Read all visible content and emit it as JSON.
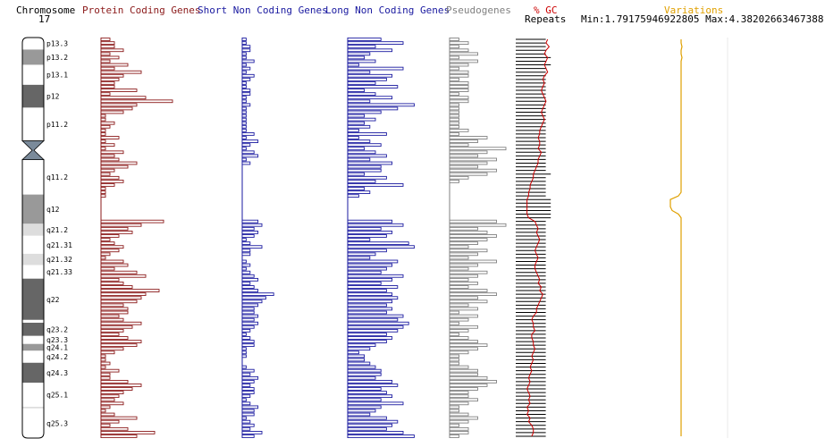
{
  "header": {
    "chromosome_label": "Chromosome",
    "chromosome_number": "17",
    "protein_coding": "Protein Coding Genes",
    "short_noncoding": "Short Non Coding Genes",
    "long_noncoding": "Long Non Coding Genes",
    "pseudogenes": "Pseudogenes",
    "gc": "% GC",
    "repeats": "Repeats",
    "minmax": "Min:1.79175946922805 Max:4.38202663467388",
    "variations": "Variations"
  },
  "colors": {
    "protein_coding": "#8b1a1a",
    "short_noncoding": "#1a1aa0",
    "long_noncoding": "#1a1aa0",
    "pseudogenes": "#808080",
    "gc": "#cc0000",
    "repeats": "#000000",
    "variations": "#e0a000",
    "band_dark": "#666666",
    "band_mid": "#999999",
    "band_light": "#dddddd",
    "centromere": "#7a8a9a"
  },
  "chart_data": {
    "type": "bar",
    "orientation": "horizontal",
    "bands": [
      {
        "name": "p13.3",
        "start": 0.0,
        "end": 0.03,
        "stain": "white"
      },
      {
        "name": "p13.2",
        "start": 0.03,
        "end": 0.068,
        "stain": "mid"
      },
      {
        "name": "p13.1",
        "start": 0.068,
        "end": 0.118,
        "stain": "white"
      },
      {
        "name": "p12",
        "start": 0.118,
        "end": 0.175,
        "stain": "dark"
      },
      {
        "name": "p11.2",
        "start": 0.175,
        "end": 0.258,
        "stain": "white"
      },
      {
        "name": "p11.1",
        "start": 0.258,
        "end": 0.281,
        "stain": "cen"
      },
      {
        "name": "q11.1",
        "start": 0.281,
        "end": 0.305,
        "stain": "cen"
      },
      {
        "name": "q11.2",
        "start": 0.305,
        "end": 0.392,
        "stain": "white"
      },
      {
        "name": "q12",
        "start": 0.392,
        "end": 0.465,
        "stain": "mid"
      },
      {
        "name": "q21.2",
        "start": 0.465,
        "end": 0.495,
        "stain": "light"
      },
      {
        "name": "q21.31",
        "start": 0.495,
        "end": 0.54,
        "stain": "white"
      },
      {
        "name": "q21.32",
        "start": 0.54,
        "end": 0.568,
        "stain": "light"
      },
      {
        "name": "q21.33",
        "start": 0.568,
        "end": 0.602,
        "stain": "white"
      },
      {
        "name": "q22",
        "start": 0.602,
        "end": 0.705,
        "stain": "dark"
      },
      {
        "name": "q23.1",
        "start": 0.705,
        "end": 0.712,
        "stain": "white"
      },
      {
        "name": "q23.2",
        "start": 0.712,
        "end": 0.745,
        "stain": "dark"
      },
      {
        "name": "q23.3",
        "start": 0.745,
        "end": 0.765,
        "stain": "white"
      },
      {
        "name": "q24.1",
        "start": 0.765,
        "end": 0.782,
        "stain": "mid"
      },
      {
        "name": "q24.2",
        "start": 0.782,
        "end": 0.812,
        "stain": "white"
      },
      {
        "name": "q24.3",
        "start": 0.812,
        "end": 0.862,
        "stain": "dark"
      },
      {
        "name": "q25.1",
        "start": 0.862,
        "end": 0.922,
        "stain": "white"
      },
      {
        "name": "q25.2",
        "start": 0.922,
        "end": 0.926,
        "stain": "light"
      },
      {
        "name": "q25.3",
        "start": 0.926,
        "end": 1.0,
        "stain": "white"
      }
    ],
    "band_labels_shown": [
      "p13.3",
      "p13.2",
      "p13.1",
      "p12",
      "p11.2",
      "q11.2",
      "q12",
      "q21.2",
      "q21.31",
      "q21.32",
      "q21.33",
      "q22",
      "q23.2",
      "q23.3",
      "q24.1",
      "q24.2",
      "q24.3",
      "q25.1",
      "q25.3"
    ],
    "bin_count": 110,
    "protein_coding": [
      2,
      3,
      3,
      5,
      2,
      4,
      2,
      6,
      3,
      9,
      5,
      4,
      3,
      3,
      8,
      2,
      10,
      16,
      8,
      7,
      5,
      1,
      1,
      3,
      2,
      1,
      1,
      4,
      1,
      3,
      1,
      5,
      3,
      4,
      8,
      6,
      3,
      2,
      4,
      5,
      3,
      1,
      1,
      1,
      0,
      0,
      0,
      0,
      0,
      0,
      14,
      9,
      6,
      7,
      4,
      2,
      3,
      5,
      4,
      2,
      1,
      5,
      6,
      3,
      8,
      10,
      4,
      5,
      7,
      13,
      10,
      9,
      8,
      5,
      6,
      6,
      4,
      5,
      9,
      7,
      5,
      4,
      6,
      9,
      8,
      5,
      3,
      1,
      1,
      2,
      1,
      4,
      2,
      2,
      6,
      9,
      7,
      5,
      4,
      3,
      5,
      2,
      1,
      3,
      8,
      4,
      2,
      6,
      12,
      8
    ],
    "short_noncoding": [
      1,
      1,
      2,
      2,
      1,
      1,
      3,
      1,
      2,
      1,
      3,
      2,
      1,
      1,
      2,
      2,
      1,
      1,
      2,
      1,
      1,
      1,
      1,
      1,
      1,
      1,
      3,
      1,
      4,
      2,
      1,
      3,
      4,
      1,
      2,
      0,
      0,
      0,
      0,
      0,
      0,
      0,
      0,
      0,
      0,
      0,
      0,
      0,
      0,
      0,
      4,
      5,
      3,
      4,
      3,
      1,
      2,
      5,
      2,
      2,
      0,
      1,
      2,
      1,
      2,
      3,
      4,
      2,
      3,
      4,
      8,
      6,
      5,
      4,
      3,
      3,
      4,
      3,
      4,
      3,
      2,
      1,
      2,
      3,
      3,
      1,
      1,
      1,
      0,
      0,
      1,
      3,
      2,
      4,
      3,
      2,
      3,
      3,
      2,
      1,
      2,
      4,
      3,
      3,
      1,
      2,
      3,
      2,
      5,
      3
    ],
    "long_noncoding": [
      6,
      10,
      5,
      8,
      4,
      3,
      5,
      2,
      10,
      4,
      8,
      7,
      5,
      9,
      3,
      5,
      8,
      4,
      12,
      9,
      6,
      3,
      5,
      3,
      4,
      2,
      7,
      2,
      4,
      6,
      3,
      5,
      7,
      4,
      8,
      6,
      6,
      3,
      7,
      5,
      10,
      3,
      4,
      2,
      0,
      0,
      0,
      0,
      0,
      0,
      8,
      10,
      6,
      8,
      7,
      4,
      11,
      12,
      7,
      5,
      4,
      9,
      8,
      7,
      6,
      10,
      8,
      6,
      9,
      7,
      8,
      9,
      8,
      7,
      8,
      7,
      10,
      9,
      11,
      10,
      9,
      7,
      8,
      7,
      5,
      4,
      2,
      3,
      3,
      4,
      5,
      6,
      6,
      5,
      8,
      9,
      6,
      7,
      8,
      6,
      10,
      6,
      5,
      4,
      7,
      9,
      8,
      7,
      10,
      12
    ],
    "pseudogenes": [
      1,
      2,
      1,
      2,
      3,
      1,
      3,
      2,
      1,
      2,
      2,
      1,
      2,
      2,
      2,
      1,
      2,
      2,
      1,
      1,
      1,
      1,
      1,
      1,
      1,
      2,
      1,
      4,
      3,
      2,
      6,
      4,
      3,
      5,
      4,
      3,
      5,
      4,
      2,
      1,
      0,
      0,
      0,
      0,
      0,
      0,
      0,
      0,
      0,
      0,
      5,
      6,
      3,
      4,
      5,
      4,
      3,
      2,
      4,
      3,
      2,
      5,
      3,
      2,
      4,
      3,
      2,
      3,
      2,
      4,
      5,
      3,
      4,
      2,
      3,
      1,
      3,
      2,
      1,
      3,
      2,
      1,
      2,
      3,
      4,
      3,
      2,
      1,
      1,
      1,
      2,
      3,
      3,
      4,
      5,
      4,
      3,
      2,
      2,
      3,
      2,
      1,
      1,
      2,
      3,
      2,
      1,
      2,
      2,
      1
    ],
    "repeats": [
      6,
      6,
      6,
      6,
      6,
      7,
      6,
      7,
      6,
      6,
      6,
      6,
      6,
      6,
      6,
      6,
      6,
      6,
      6,
      6,
      6,
      6,
      6,
      6,
      6,
      6,
      6,
      6,
      6,
      6,
      6,
      6,
      6,
      6,
      6,
      6,
      6,
      7,
      6,
      6,
      6,
      6,
      6,
      6,
      7,
      7,
      7,
      7,
      7,
      7,
      6,
      6,
      6,
      6,
      6,
      6,
      6,
      6,
      6,
      6,
      6,
      6,
      6,
      6,
      6,
      6,
      6,
      6,
      6,
      6,
      6,
      6,
      6,
      6,
      6,
      6,
      6,
      6,
      6,
      6,
      6,
      6,
      6,
      6,
      6,
      6,
      6,
      6,
      6,
      6,
      6,
      6,
      6,
      6,
      6,
      6,
      6,
      6,
      6,
      6,
      6,
      6,
      6,
      6,
      6,
      6,
      6,
      6,
      6,
      6
    ],
    "gc": [
      3.8,
      3.7,
      3.9,
      3.7,
      3.6,
      3.8,
      3.7,
      3.6,
      3.7,
      3.8,
      3.6,
      3.5,
      3.6,
      3.5,
      3.4,
      3.5,
      3.6,
      3.7,
      3.6,
      3.5,
      3.4,
      3.5,
      3.6,
      3.5,
      3.4,
      3.3,
      3.3,
      3.2,
      3.3,
      3.3,
      3.2,
      3.4,
      3.3,
      3.2,
      3.2,
      3.1,
      3.0,
      2.9,
      2.9,
      2.8,
      2.7,
      2.7,
      2.6,
      2.6,
      2.5,
      2.5,
      2.5,
      2.5,
      2.5,
      2.6,
      3.0,
      3.1,
      3.2,
      3.1,
      3.2,
      3.3,
      3.2,
      3.1,
      3.0,
      3.1,
      3.2,
      3.1,
      3.0,
      3.0,
      3.1,
      3.2,
      3.3,
      3.2,
      3.4,
      3.3,
      3.5,
      3.4,
      3.3,
      3.2,
      3.1,
      3.1,
      2.9,
      2.8,
      2.9,
      2.9,
      3.0,
      2.8,
      2.8,
      2.9,
      2.9,
      3.0,
      2.9,
      2.8,
      2.9,
      2.8,
      2.7,
      2.8,
      2.7,
      2.6,
      2.7,
      2.6,
      2.5,
      2.6,
      2.7,
      2.6,
      2.7,
      2.5,
      2.6,
      2.5,
      2.7,
      2.6,
      2.8,
      2.9,
      2.9,
      2.8
    ],
    "variations": [
      2.2,
      2.2,
      2.3,
      2.2,
      2.2,
      2.3,
      2.2,
      2.2,
      2.2,
      2.2,
      2.2,
      2.2,
      2.2,
      2.2,
      2.2,
      2.2,
      2.2,
      2.2,
      2.2,
      2.2,
      2.2,
      2.2,
      2.2,
      2.2,
      2.2,
      2.2,
      2.2,
      2.2,
      2.2,
      2.2,
      2.2,
      2.2,
      2.2,
      2.2,
      2.2,
      2.2,
      2.2,
      2.2,
      2.2,
      2.2,
      2.2,
      2.2,
      2.2,
      1.9,
      1.0,
      1.0,
      1.0,
      1.2,
      1.9,
      2.2,
      2.2,
      2.2,
      2.2,
      2.2,
      2.2,
      2.2,
      2.2,
      2.2,
      2.2,
      2.2,
      2.2,
      2.2,
      2.2,
      2.2,
      2.2,
      2.2,
      2.2,
      2.2,
      2.2,
      2.2,
      2.2,
      2.2,
      2.2,
      2.2,
      2.2,
      2.2,
      2.2,
      2.2,
      2.2,
      2.2,
      2.2,
      2.2,
      2.2,
      2.2,
      2.2,
      2.2,
      2.2,
      2.2,
      2.2,
      2.2,
      2.2,
      2.2,
      2.2,
      2.2,
      2.2,
      2.2,
      2.2,
      2.2,
      2.2,
      2.2,
      2.2,
      2.2,
      2.2,
      2.2,
      2.2,
      2.2,
      2.2,
      2.2,
      2.2,
      2.2
    ]
  }
}
